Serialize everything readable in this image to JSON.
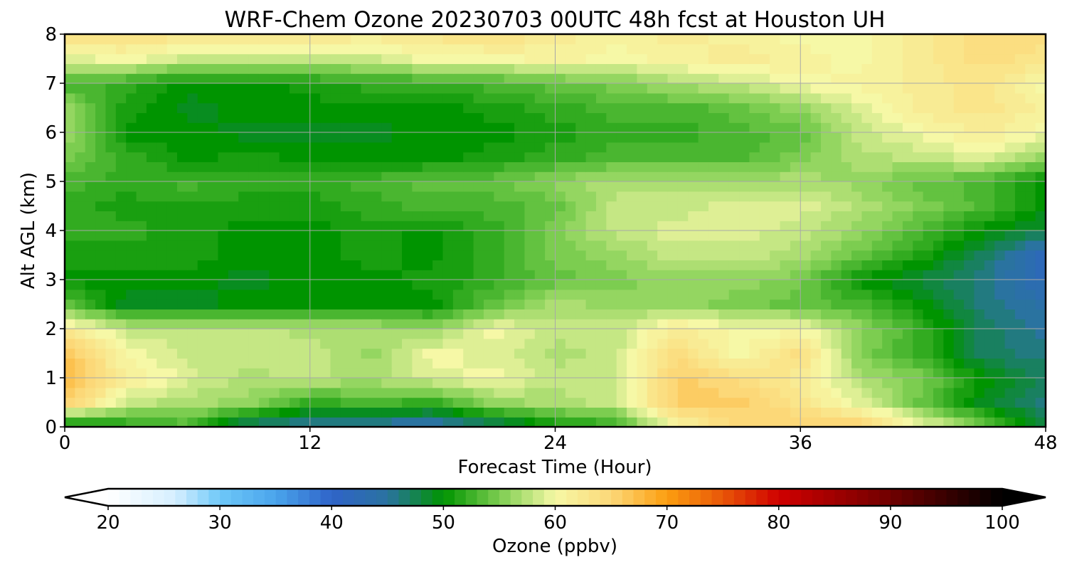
{
  "chart_data": {
    "type": "heatmap",
    "title": "WRF-Chem Ozone  20230703 00UTC 48h fcst at Houston UH",
    "xlabel": "Forecast Time (Hour)",
    "ylabel": "Alt AGL (km)",
    "xlim": [
      0,
      48
    ],
    "ylim": [
      0,
      8
    ],
    "x_ticks": [
      "0",
      "12",
      "24",
      "36",
      "48"
    ],
    "y_ticks": [
      "0",
      "1",
      "2",
      "3",
      "4",
      "5",
      "6",
      "7",
      "8"
    ],
    "grid": true,
    "x_grid_hours": [
      0,
      3,
      6,
      9,
      12,
      15,
      18,
      21,
      24,
      27,
      30,
      33,
      36,
      39,
      42,
      45,
      48
    ],
    "y_grid_km": [
      0,
      0.5,
      1,
      1.5,
      2,
      2.5,
      3,
      3.5,
      4,
      4.5,
      5,
      5.5,
      6,
      6.5,
      7,
      7.5,
      8
    ],
    "ozone_ppbv": [
      [
        48,
        51,
        53,
        46,
        44,
        44,
        43,
        46,
        50,
        52,
        60,
        65,
        66,
        66,
        60,
        55,
        48
      ],
      [
        66,
        58,
        57,
        56,
        52,
        53,
        52,
        56,
        57,
        58,
        66,
        66,
        63,
        59,
        54,
        49,
        46
      ],
      [
        68,
        62,
        59,
        57,
        58,
        57,
        59,
        60,
        58,
        58,
        66,
        64,
        62,
        57,
        55,
        50,
        47
      ],
      [
        67,
        60,
        58,
        58,
        58,
        56,
        60,
        59,
        57,
        58,
        64,
        60,
        64,
        55,
        52,
        47,
        46
      ],
      [
        62,
        58,
        58,
        58,
        57,
        57,
        56,
        60,
        58,
        58,
        62,
        60,
        60,
        56,
        52,
        47,
        45
      ],
      [
        54,
        49,
        49,
        50,
        50,
        50,
        50,
        54,
        57,
        56,
        56,
        55,
        54,
        53,
        50,
        46,
        44
      ],
      [
        50,
        50,
        50,
        49,
        50,
        50,
        51,
        52,
        54,
        55,
        56,
        56,
        55,
        50,
        48,
        46,
        42
      ],
      [
        51,
        51,
        51,
        50,
        50,
        51,
        50,
        52,
        55,
        56,
        58,
        58,
        57,
        54,
        51,
        47,
        42
      ],
      [
        52,
        52,
        51,
        50,
        50,
        51,
        50,
        52,
        55,
        58,
        59,
        59,
        58,
        56,
        53,
        50,
        48
      ],
      [
        52,
        51,
        51,
        51,
        51,
        52,
        53,
        53,
        54,
        58,
        58,
        59,
        59,
        57,
        55,
        53,
        50
      ],
      [
        53,
        52,
        53,
        52,
        52,
        53,
        54,
        54,
        56,
        57,
        57,
        57,
        57,
        56,
        54,
        53,
        50
      ],
      [
        55,
        52,
        50,
        51,
        50,
        50,
        50,
        51,
        52,
        53,
        53,
        53,
        55,
        57,
        58,
        59,
        56
      ],
      [
        57,
        50,
        50,
        49,
        49,
        49,
        50,
        50,
        51,
        52,
        52,
        53,
        54,
        58,
        60,
        62,
        60
      ],
      [
        56,
        51,
        49,
        50,
        50,
        50,
        50,
        51,
        52,
        53,
        53,
        54,
        56,
        59,
        62,
        63,
        61
      ],
      [
        53,
        52,
        50,
        50,
        51,
        52,
        52,
        53,
        54,
        55,
        57,
        58,
        60,
        61,
        62,
        63,
        60
      ],
      [
        59,
        60,
        58,
        58,
        58,
        58,
        60,
        60,
        61,
        60,
        61,
        62,
        61,
        60,
        62,
        64,
        63
      ],
      [
        64,
        64,
        63,
        63,
        63,
        62,
        63,
        64,
        62,
        61,
        62,
        61,
        60,
        60,
        62,
        64,
        64
      ]
    ],
    "colorbar": {
      "label": "Ozone  (ppbv)",
      "min": 20,
      "max": 100,
      "extend": "both",
      "tick_labels": [
        "20",
        "30",
        "40",
        "50",
        "60",
        "70",
        "80",
        "90",
        "100"
      ],
      "color_stops": [
        [
          20,
          "#ffffff"
        ],
        [
          26,
          "#d6efff"
        ],
        [
          30,
          "#6ec8f8"
        ],
        [
          35,
          "#4aa4ec"
        ],
        [
          40,
          "#2f63c8"
        ],
        [
          45,
          "#2a73a0"
        ],
        [
          50,
          "#009400"
        ],
        [
          55,
          "#7ccd50"
        ],
        [
          60,
          "#f6f8a6"
        ],
        [
          65,
          "#fcd878"
        ],
        [
          70,
          "#fc9e10"
        ],
        [
          75,
          "#e85608"
        ],
        [
          80,
          "#d00000"
        ],
        [
          85,
          "#a00000"
        ],
        [
          90,
          "#700000"
        ],
        [
          95,
          "#380000"
        ],
        [
          100,
          "#000000"
        ]
      ]
    }
  }
}
